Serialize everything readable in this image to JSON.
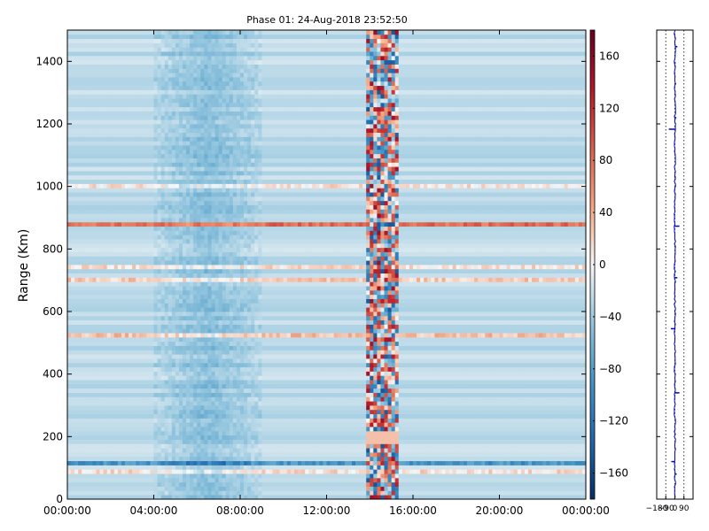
{
  "chart_data": [
    {
      "type": "heatmap",
      "title": "Phase 01: 24-Aug-2018 23:52:50",
      "xlabel": "",
      "ylabel": "Range (Km)",
      "x_tick_labels": [
        "00:00:00",
        "04:00:00",
        "08:00:00",
        "12:00:00",
        "16:00:00",
        "20:00:00",
        "00:00:00"
      ],
      "x_ticks_hours": [
        0,
        4,
        8,
        12,
        16,
        20,
        24
      ],
      "xlim_hours": [
        0,
        24
      ],
      "y_ticks": [
        0,
        200,
        400,
        600,
        800,
        1000,
        1200,
        1400
      ],
      "ylim": [
        0,
        1500
      ],
      "colorbar": {
        "colormap": "RdBu_r",
        "range": [
          -180,
          180
        ],
        "ticks": [
          -160,
          -120,
          -80,
          -40,
          0,
          40,
          80,
          120,
          160
        ],
        "tick_labels": [
          "−160",
          "−120",
          "−80",
          "−40",
          "0",
          "40",
          "80",
          "120",
          "160"
        ]
      },
      "features": {
        "bright_red_band_km": 880,
        "red_bands_km": [
          1000,
          740,
          705,
          530,
          90
        ],
        "blue_band_km": 115,
        "noisy_column_hours": [
          13.9,
          15.4
        ],
        "darker_blue_period_hours": [
          4,
          9
        ]
      },
      "grid": false
    },
    {
      "type": "scatter",
      "title": "",
      "x_tick_labels": [
        "−180",
        "−90",
        "0",
        "90"
      ],
      "x_ticks": [
        -180,
        -90,
        0,
        90
      ],
      "xlim": [
        -180,
        180
      ],
      "ylim": [
        0,
        1500
      ],
      "y_ticks": [
        0,
        200,
        400,
        600,
        800,
        1000,
        1200,
        1400
      ],
      "vertical_guides": [
        -90,
        0,
        90
      ],
      "color": "#0000cc",
      "spikes": [
        {
          "range_km": 1447,
          "value": 25
        },
        {
          "range_km": 1395,
          "value": 8
        },
        {
          "range_km": 1328,
          "value": 12
        },
        {
          "range_km": 1293,
          "value": 10
        },
        {
          "range_km": 1220,
          "value": 15
        },
        {
          "range_km": 1183,
          "value": -60
        },
        {
          "range_km": 1030,
          "value": 10
        },
        {
          "range_km": 1002,
          "value": 12
        },
        {
          "range_km": 873,
          "value": 45
        },
        {
          "range_km": 708,
          "value": 25
        },
        {
          "range_km": 595,
          "value": 8
        },
        {
          "range_km": 545,
          "value": -40
        },
        {
          "range_km": 340,
          "value": 45
        },
        {
          "range_km": 120,
          "value": -35
        },
        {
          "range_km": 80,
          "value": 18
        }
      ]
    }
  ]
}
